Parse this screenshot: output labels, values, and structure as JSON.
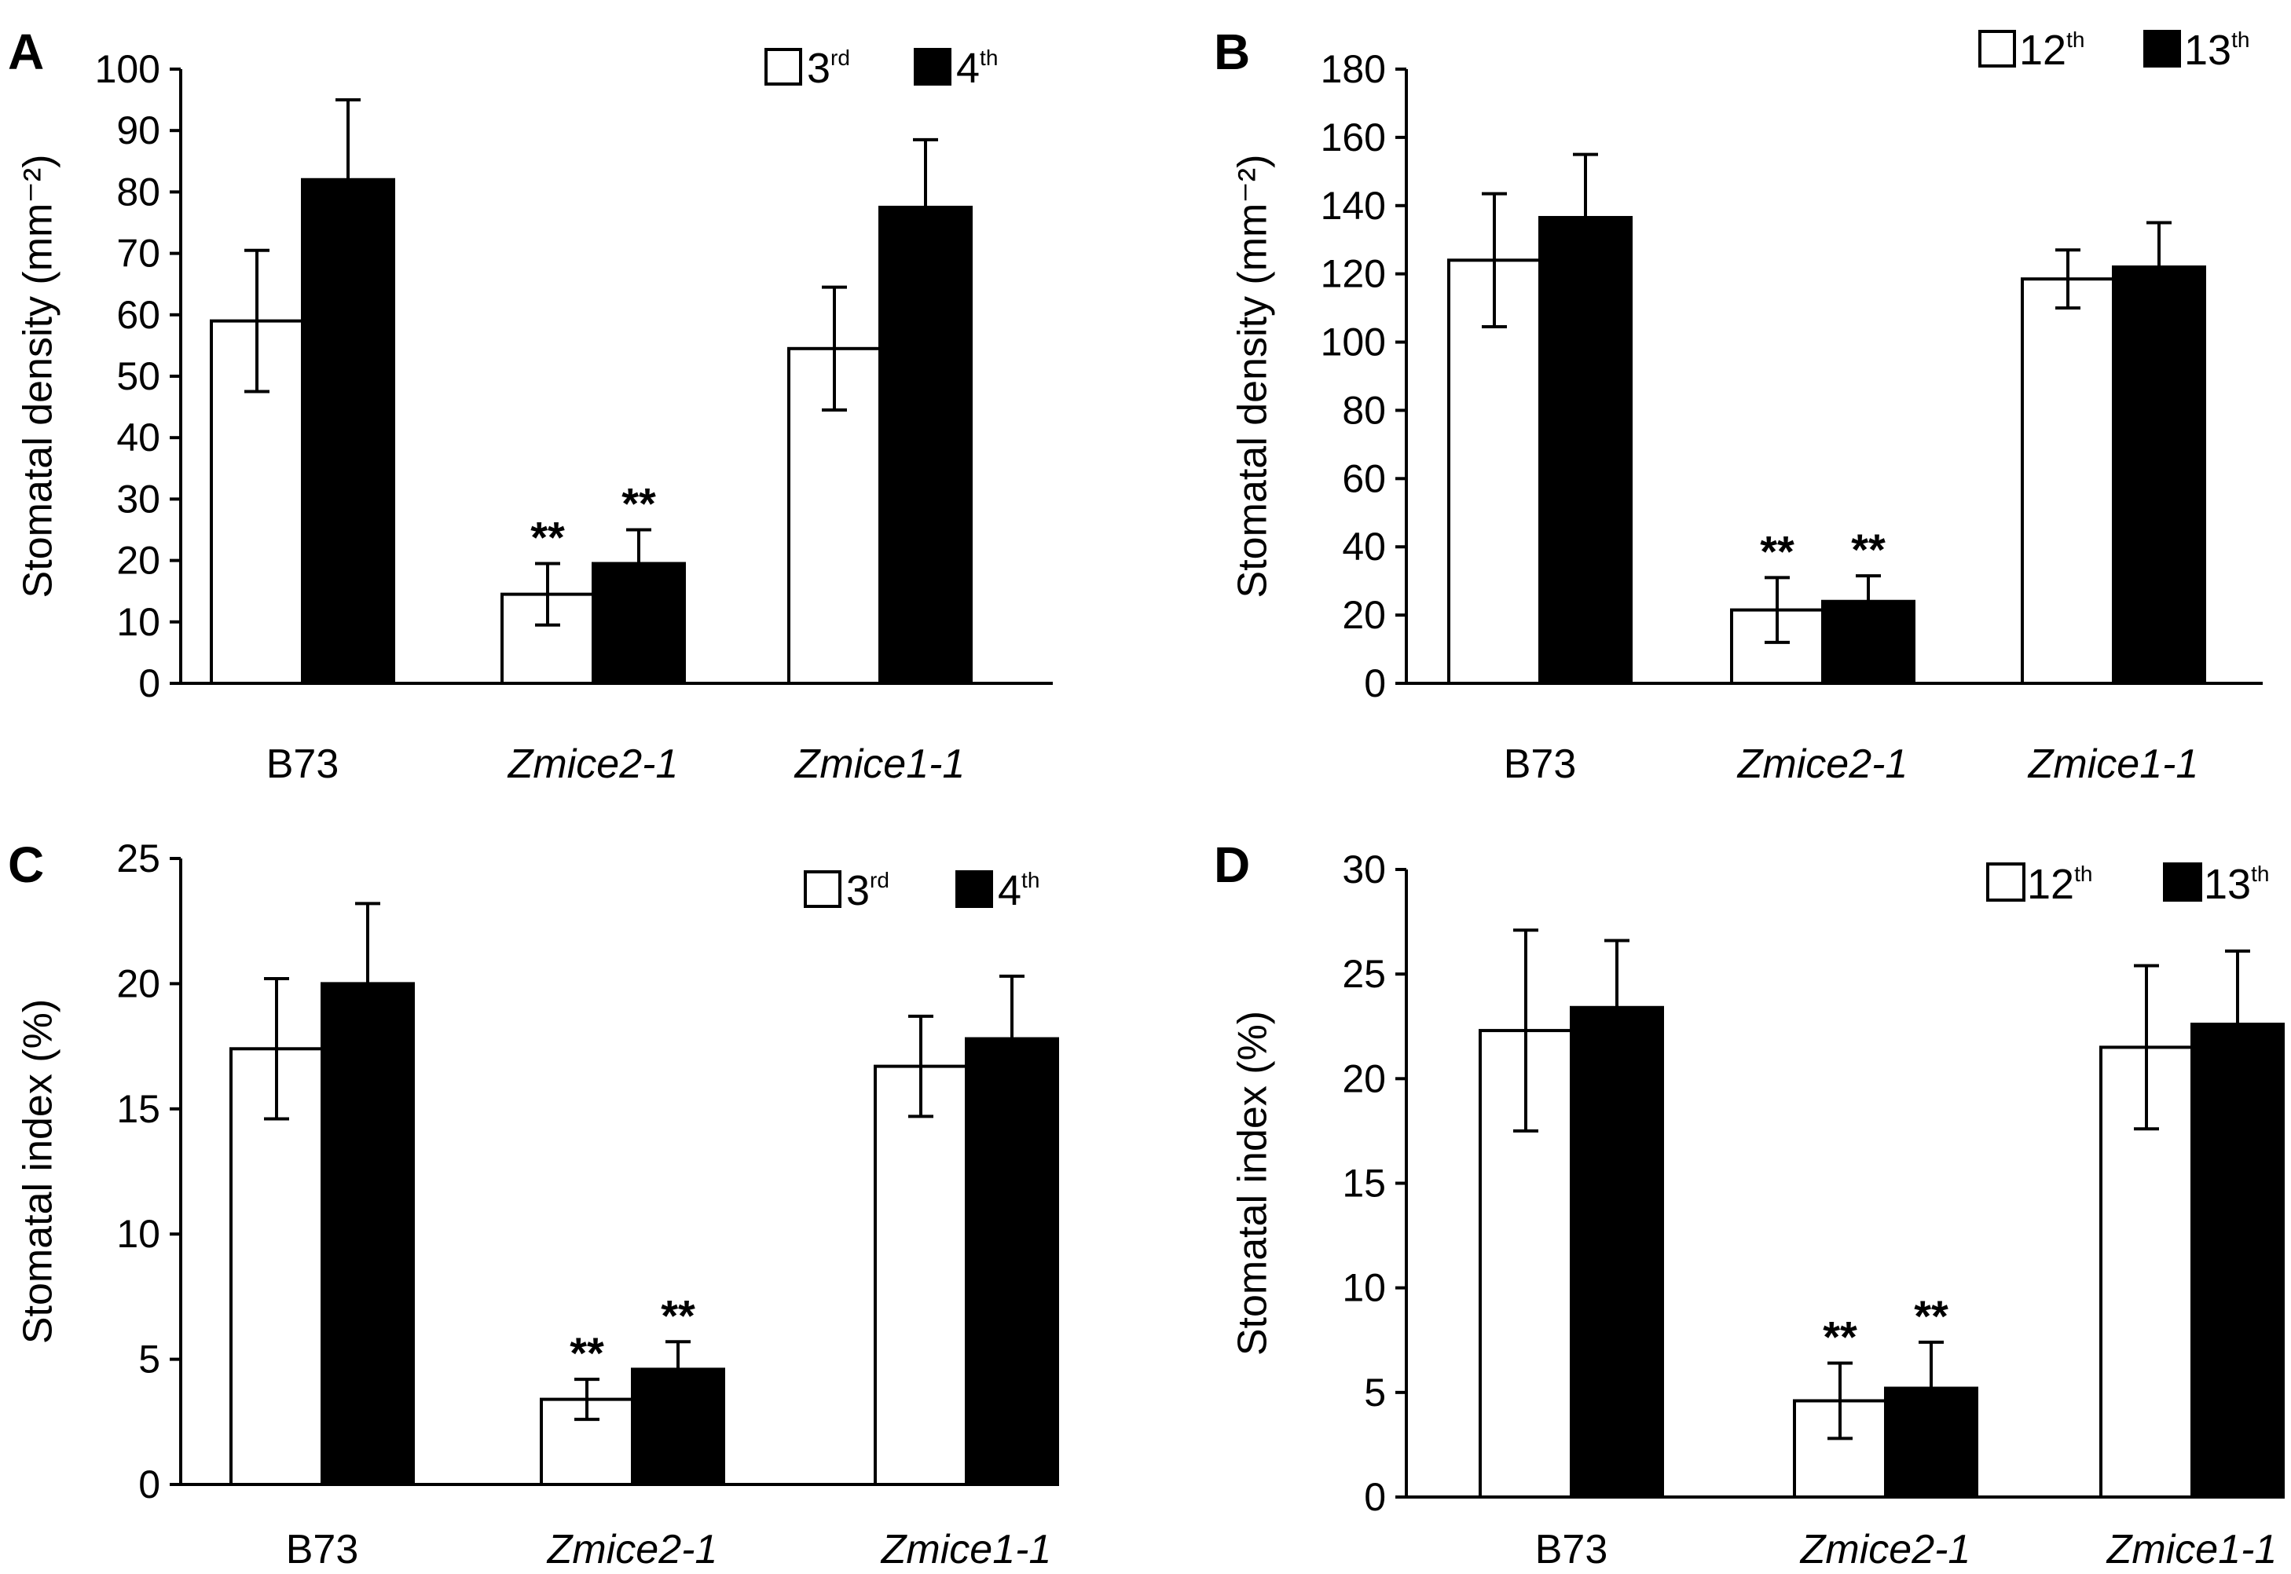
{
  "colors": {
    "series_open": "#ffffff",
    "series_filled": "#000000",
    "stroke": "#000000"
  },
  "chart_data": [
    {
      "panel": "A",
      "type": "bar",
      "ylabel": "Stomatal density (mm⁻²)",
      "ylim": [
        0,
        100
      ],
      "yticks": [
        0,
        10,
        20,
        30,
        40,
        50,
        60,
        70,
        80,
        90,
        100
      ],
      "categories": [
        "B73",
        "Zmice2-1",
        "Zmice1-1"
      ],
      "series": [
        {
          "name": "3",
          "sup": "rd",
          "values": [
            59,
            14.5,
            54.5
          ],
          "errors": [
            11.5,
            5,
            10
          ]
        },
        {
          "name": "4",
          "sup": "th",
          "values": [
            82,
            19.5,
            77.5
          ],
          "errors": [
            13,
            5.5,
            11
          ]
        }
      ],
      "significance": [
        "",
        "**",
        ""
      ],
      "legend": "top-right",
      "grid": false
    },
    {
      "panel": "B",
      "type": "bar",
      "ylabel": "Stomatal density (mm⁻²)",
      "ylim": [
        0,
        180
      ],
      "yticks": [
        0,
        20,
        40,
        60,
        80,
        100,
        120,
        140,
        160,
        180
      ],
      "categories": [
        "B73",
        "Zmice2-1",
        "Zmice1-1"
      ],
      "series": [
        {
          "name": "12",
          "sup": "th",
          "values": [
            124,
            21.5,
            118.5
          ],
          "errors": [
            19.5,
            9.5,
            8.5
          ]
        },
        {
          "name": "13",
          "sup": "th",
          "values": [
            136.5,
            24,
            122
          ],
          "errors": [
            18.5,
            7.5,
            13
          ]
        }
      ],
      "significance": [
        "",
        "**",
        ""
      ],
      "legend": "top-right",
      "grid": false
    },
    {
      "panel": "C",
      "type": "bar",
      "ylabel": "Stomatal index (%)",
      "ylim": [
        0,
        25
      ],
      "yticks": [
        0,
        5,
        10,
        15,
        20,
        25
      ],
      "categories": [
        "B73",
        "Zmice2-1",
        "Zmice1-1"
      ],
      "series": [
        {
          "name": "3",
          "sup": "rd",
          "values": [
            17.4,
            3.4,
            16.7
          ],
          "errors": [
            2.8,
            0.8,
            2
          ]
        },
        {
          "name": "4",
          "sup": "th",
          "values": [
            20,
            4.6,
            17.8
          ],
          "errors": [
            3.2,
            1.1,
            2.5
          ]
        }
      ],
      "significance": [
        "",
        "**",
        ""
      ],
      "legend": "top-right",
      "grid": false
    },
    {
      "panel": "D",
      "type": "bar",
      "ylabel": "Stomatal index (%)",
      "ylim": [
        0,
        30
      ],
      "yticks": [
        0,
        5,
        10,
        15,
        20,
        25,
        30
      ],
      "categories": [
        "B73",
        "Zmice2-1",
        "Zmice1-1"
      ],
      "series": [
        {
          "name": "12",
          "sup": "th",
          "values": [
            22.3,
            4.6,
            21.5
          ],
          "errors": [
            4.8,
            1.8,
            3.9
          ]
        },
        {
          "name": "13",
          "sup": "th",
          "values": [
            23.4,
            5.2,
            22.6
          ],
          "errors": [
            3.2,
            2.2,
            3.5
          ]
        }
      ],
      "significance": [
        "",
        "**",
        ""
      ],
      "legend": "top-right",
      "grid": false
    }
  ]
}
